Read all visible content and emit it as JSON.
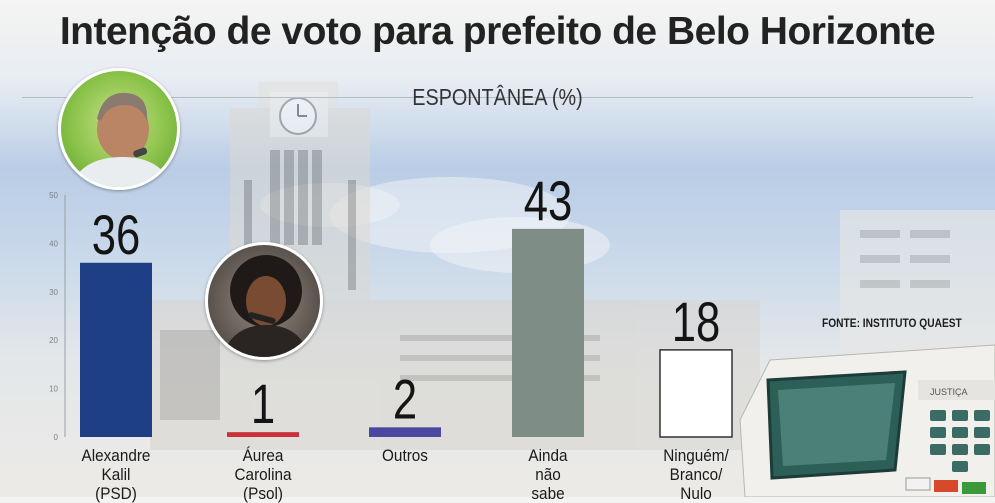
{
  "title": "Intenção de voto para prefeito de Belo Horizonte",
  "subtitle": "ESPONTÂNEA (%)",
  "source": "FONTE: INSTITUTO QUAEST",
  "colors": {
    "alexandre": "#1e3f86",
    "aurea": "#c9303a",
    "outros": "#4a48a0",
    "ainda": "#7e8e86",
    "ninguem": "#ffffff"
  },
  "chart_data": {
    "type": "bar",
    "title": "Intenção de voto para prefeito de Belo Horizonte",
    "subtitle": "ESPONTÂNEA (%)",
    "categories": [
      "Alexandre Kalil (PSD)",
      "Áurea Carolina (Psol)",
      "Outros",
      "Ainda não sabe",
      "Ninguém/ Branco/ Nulo"
    ],
    "category_lines": [
      [
        "Alexandre",
        "Kalil",
        "(PSD)"
      ],
      [
        "Áurea",
        "Carolina",
        "(Psol)"
      ],
      [
        "Outros"
      ],
      [
        "Ainda",
        "não",
        "sabe"
      ],
      [
        "Ninguém/",
        "Branco/",
        "Nulo"
      ]
    ],
    "values": [
      36,
      1,
      2,
      43,
      18
    ],
    "bar_colors": [
      "#1e3f86",
      "#c9303a",
      "#4a48a0",
      "#7e8e86",
      "#ffffff"
    ],
    "yticks": [
      0,
      10,
      20,
      30,
      40,
      50
    ],
    "ylim": [
      0,
      50
    ],
    "grid": false,
    "legend": "none"
  }
}
